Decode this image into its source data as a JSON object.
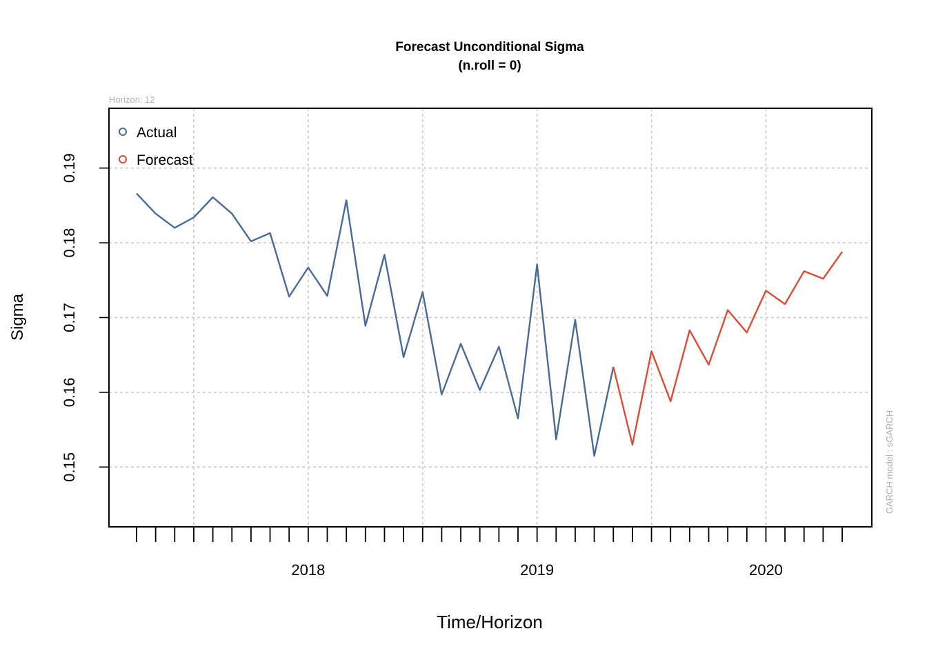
{
  "chart_data": {
    "type": "line",
    "title": "Forecast Unconditional Sigma",
    "subtitle": "(n.roll = 0)",
    "xlabel": "Time/Horizon",
    "ylabel": "Sigma",
    "horizon_note": "Horizon: 12",
    "model_note": "GARCH model :  sGARCH",
    "ylim": [
      0.142,
      0.198
    ],
    "y_ticks": [
      0.15,
      0.16,
      0.17,
      0.18,
      0.19
    ],
    "y_tick_labels": [
      "0.15",
      "0.16",
      "0.17",
      "0.18",
      "0.19"
    ],
    "x_year_labels": [
      {
        "label": "2018",
        "index": 9
      },
      {
        "label": "2019",
        "index": 21
      },
      {
        "label": "2020",
        "index": 33
      }
    ],
    "grid": true,
    "legend_position": "top-left",
    "series": [
      {
        "name": "Actual",
        "color": "#4a6a96",
        "start_index": 0,
        "values": [
          0.1866,
          0.1839,
          0.182,
          0.1834,
          0.1861,
          0.1839,
          0.1802,
          0.1813,
          0.1728,
          0.1767,
          0.1729,
          0.1857,
          0.1689,
          0.1784,
          0.1647,
          0.1734,
          0.1597,
          0.1665,
          0.1603,
          0.1661,
          0.1565,
          0.1771,
          0.1537,
          0.1697,
          0.1515,
          0.1634
        ]
      },
      {
        "name": "Forecast",
        "color": "#e04a35",
        "start_index": 25,
        "values": [
          0.1634,
          0.153,
          0.1655,
          0.1588,
          0.1683,
          0.1637,
          0.171,
          0.168,
          0.1736,
          0.1718,
          0.1762,
          0.1752,
          0.1788
        ]
      }
    ]
  }
}
